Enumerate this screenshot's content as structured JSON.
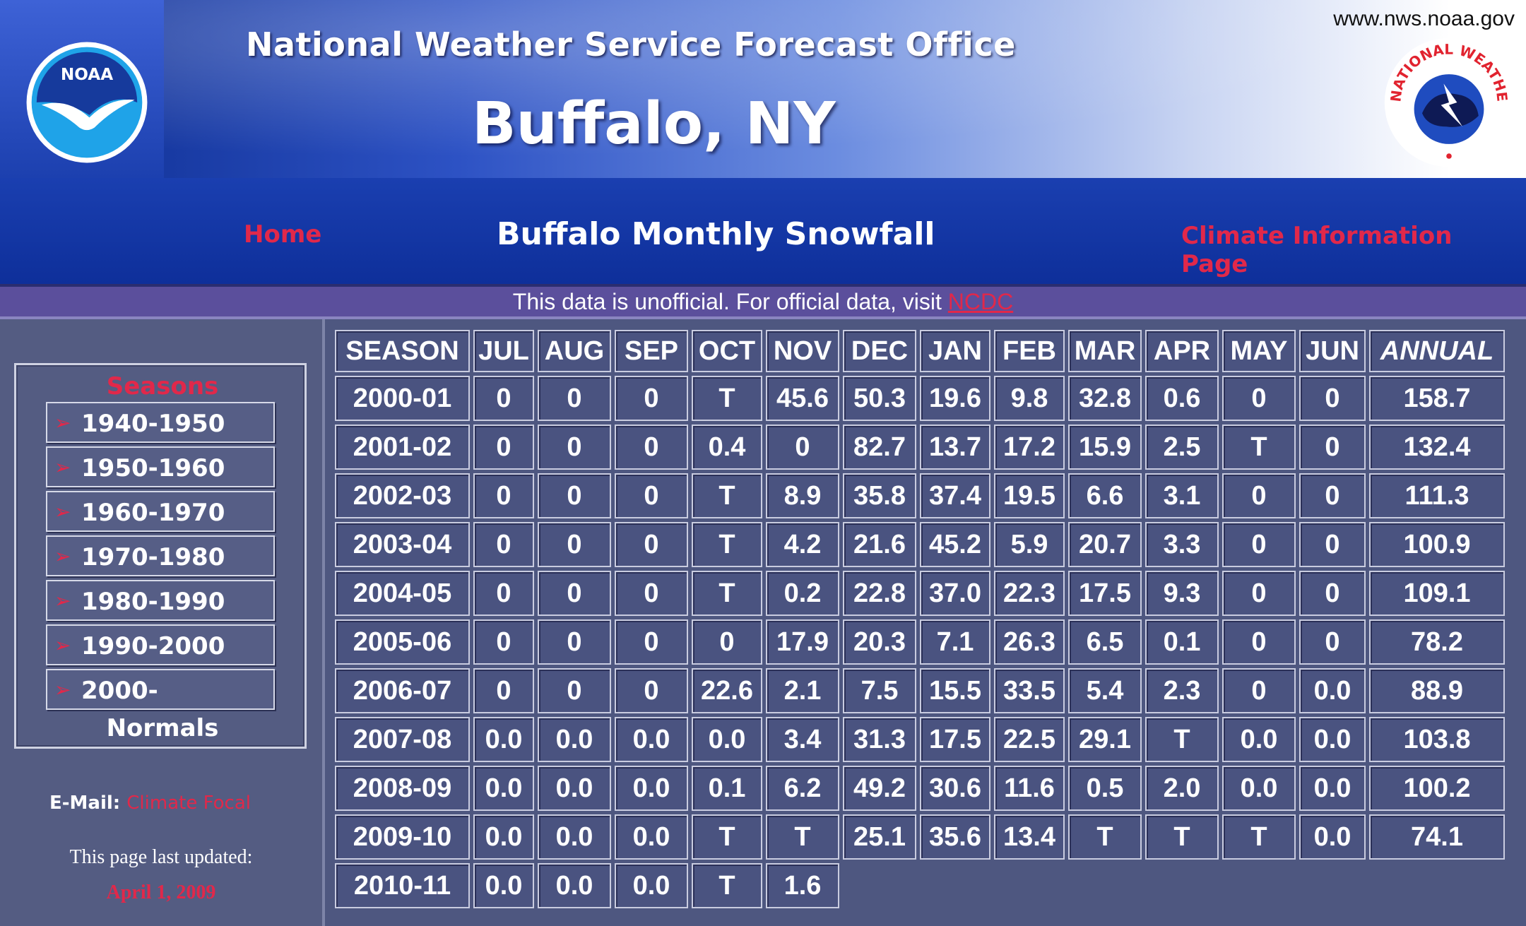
{
  "header": {
    "url": "www.nws.noaa.gov",
    "office": "National Weather Service Forecast Office",
    "city": "Buffalo, NY",
    "noaa_logo_text": "NOAA",
    "seal_text": "NATIONAL WEATHER SERVICE"
  },
  "nav": {
    "home": "Home",
    "title": "Buffalo Monthly Snowfall",
    "climate": "Climate Information Page"
  },
  "notice": {
    "text": "This data is unofficial. For official data, visit ",
    "link": "NCDC"
  },
  "sidebar": {
    "seasons_title": "Seasons",
    "items": [
      {
        "label": "1940-1950"
      },
      {
        "label": "1950-1960"
      },
      {
        "label": "1960-1970"
      },
      {
        "label": "1970-1980"
      },
      {
        "label": "1980-1990"
      },
      {
        "label": "1990-2000"
      },
      {
        "label": "2000-"
      }
    ],
    "normals": "Normals",
    "email_label": "E-Mail:",
    "email_link": "Climate Focal",
    "updated_label": "This page last updated:",
    "updated_date": "April 1, 2009"
  },
  "table": {
    "headers": [
      "SEASON",
      "JUL",
      "AUG",
      "SEP",
      "OCT",
      "NOV",
      "DEC",
      "JAN",
      "FEB",
      "MAR",
      "APR",
      "MAY",
      "JUN",
      "ANNUAL"
    ],
    "rows": [
      [
        "2000-01",
        "0",
        "0",
        "0",
        "T",
        "45.6",
        "50.3",
        "19.6",
        "9.8",
        "32.8",
        "0.6",
        "0",
        "0",
        "158.7"
      ],
      [
        "2001-02",
        "0",
        "0",
        "0",
        "0.4",
        "0",
        "82.7",
        "13.7",
        "17.2",
        "15.9",
        "2.5",
        "T",
        "0",
        "132.4"
      ],
      [
        "2002-03",
        "0",
        "0",
        "0",
        "T",
        "8.9",
        "35.8",
        "37.4",
        "19.5",
        "6.6",
        "3.1",
        "0",
        "0",
        "111.3"
      ],
      [
        "2003-04",
        "0",
        "0",
        "0",
        "T",
        "4.2",
        "21.6",
        "45.2",
        "5.9",
        "20.7",
        "3.3",
        "0",
        "0",
        "100.9"
      ],
      [
        "2004-05",
        "0",
        "0",
        "0",
        "T",
        "0.2",
        "22.8",
        "37.0",
        "22.3",
        "17.5",
        "9.3",
        "0",
        "0",
        "109.1"
      ],
      [
        "2005-06",
        "0",
        "0",
        "0",
        "0",
        "17.9",
        "20.3",
        "7.1",
        "26.3",
        "6.5",
        "0.1",
        "0",
        "0",
        "78.2"
      ],
      [
        "2006-07",
        "0",
        "0",
        "0",
        "22.6",
        "2.1",
        "7.5",
        "15.5",
        "33.5",
        "5.4",
        "2.3",
        "0",
        "0.0",
        "88.9"
      ],
      [
        "2007-08",
        "0.0",
        "0.0",
        "0.0",
        "0.0",
        "3.4",
        "31.3",
        "17.5",
        "22.5",
        "29.1",
        "T",
        "0.0",
        "0.0",
        "103.8"
      ],
      [
        "2008-09",
        "0.0",
        "0.0",
        "0.0",
        "0.1",
        "6.2",
        "49.2",
        "30.6",
        "11.6",
        "0.5",
        "2.0",
        "0.0",
        "0.0",
        "100.2"
      ],
      [
        "2009-10",
        "0.0",
        "0.0",
        "0.0",
        "T",
        "T",
        "25.1",
        "35.6",
        "13.4",
        "T",
        "T",
        "T",
        "0.0",
        "74.1"
      ],
      [
        "2010-11",
        "0.0",
        "0.0",
        "0.0",
        "T",
        "1.6"
      ]
    ]
  }
}
